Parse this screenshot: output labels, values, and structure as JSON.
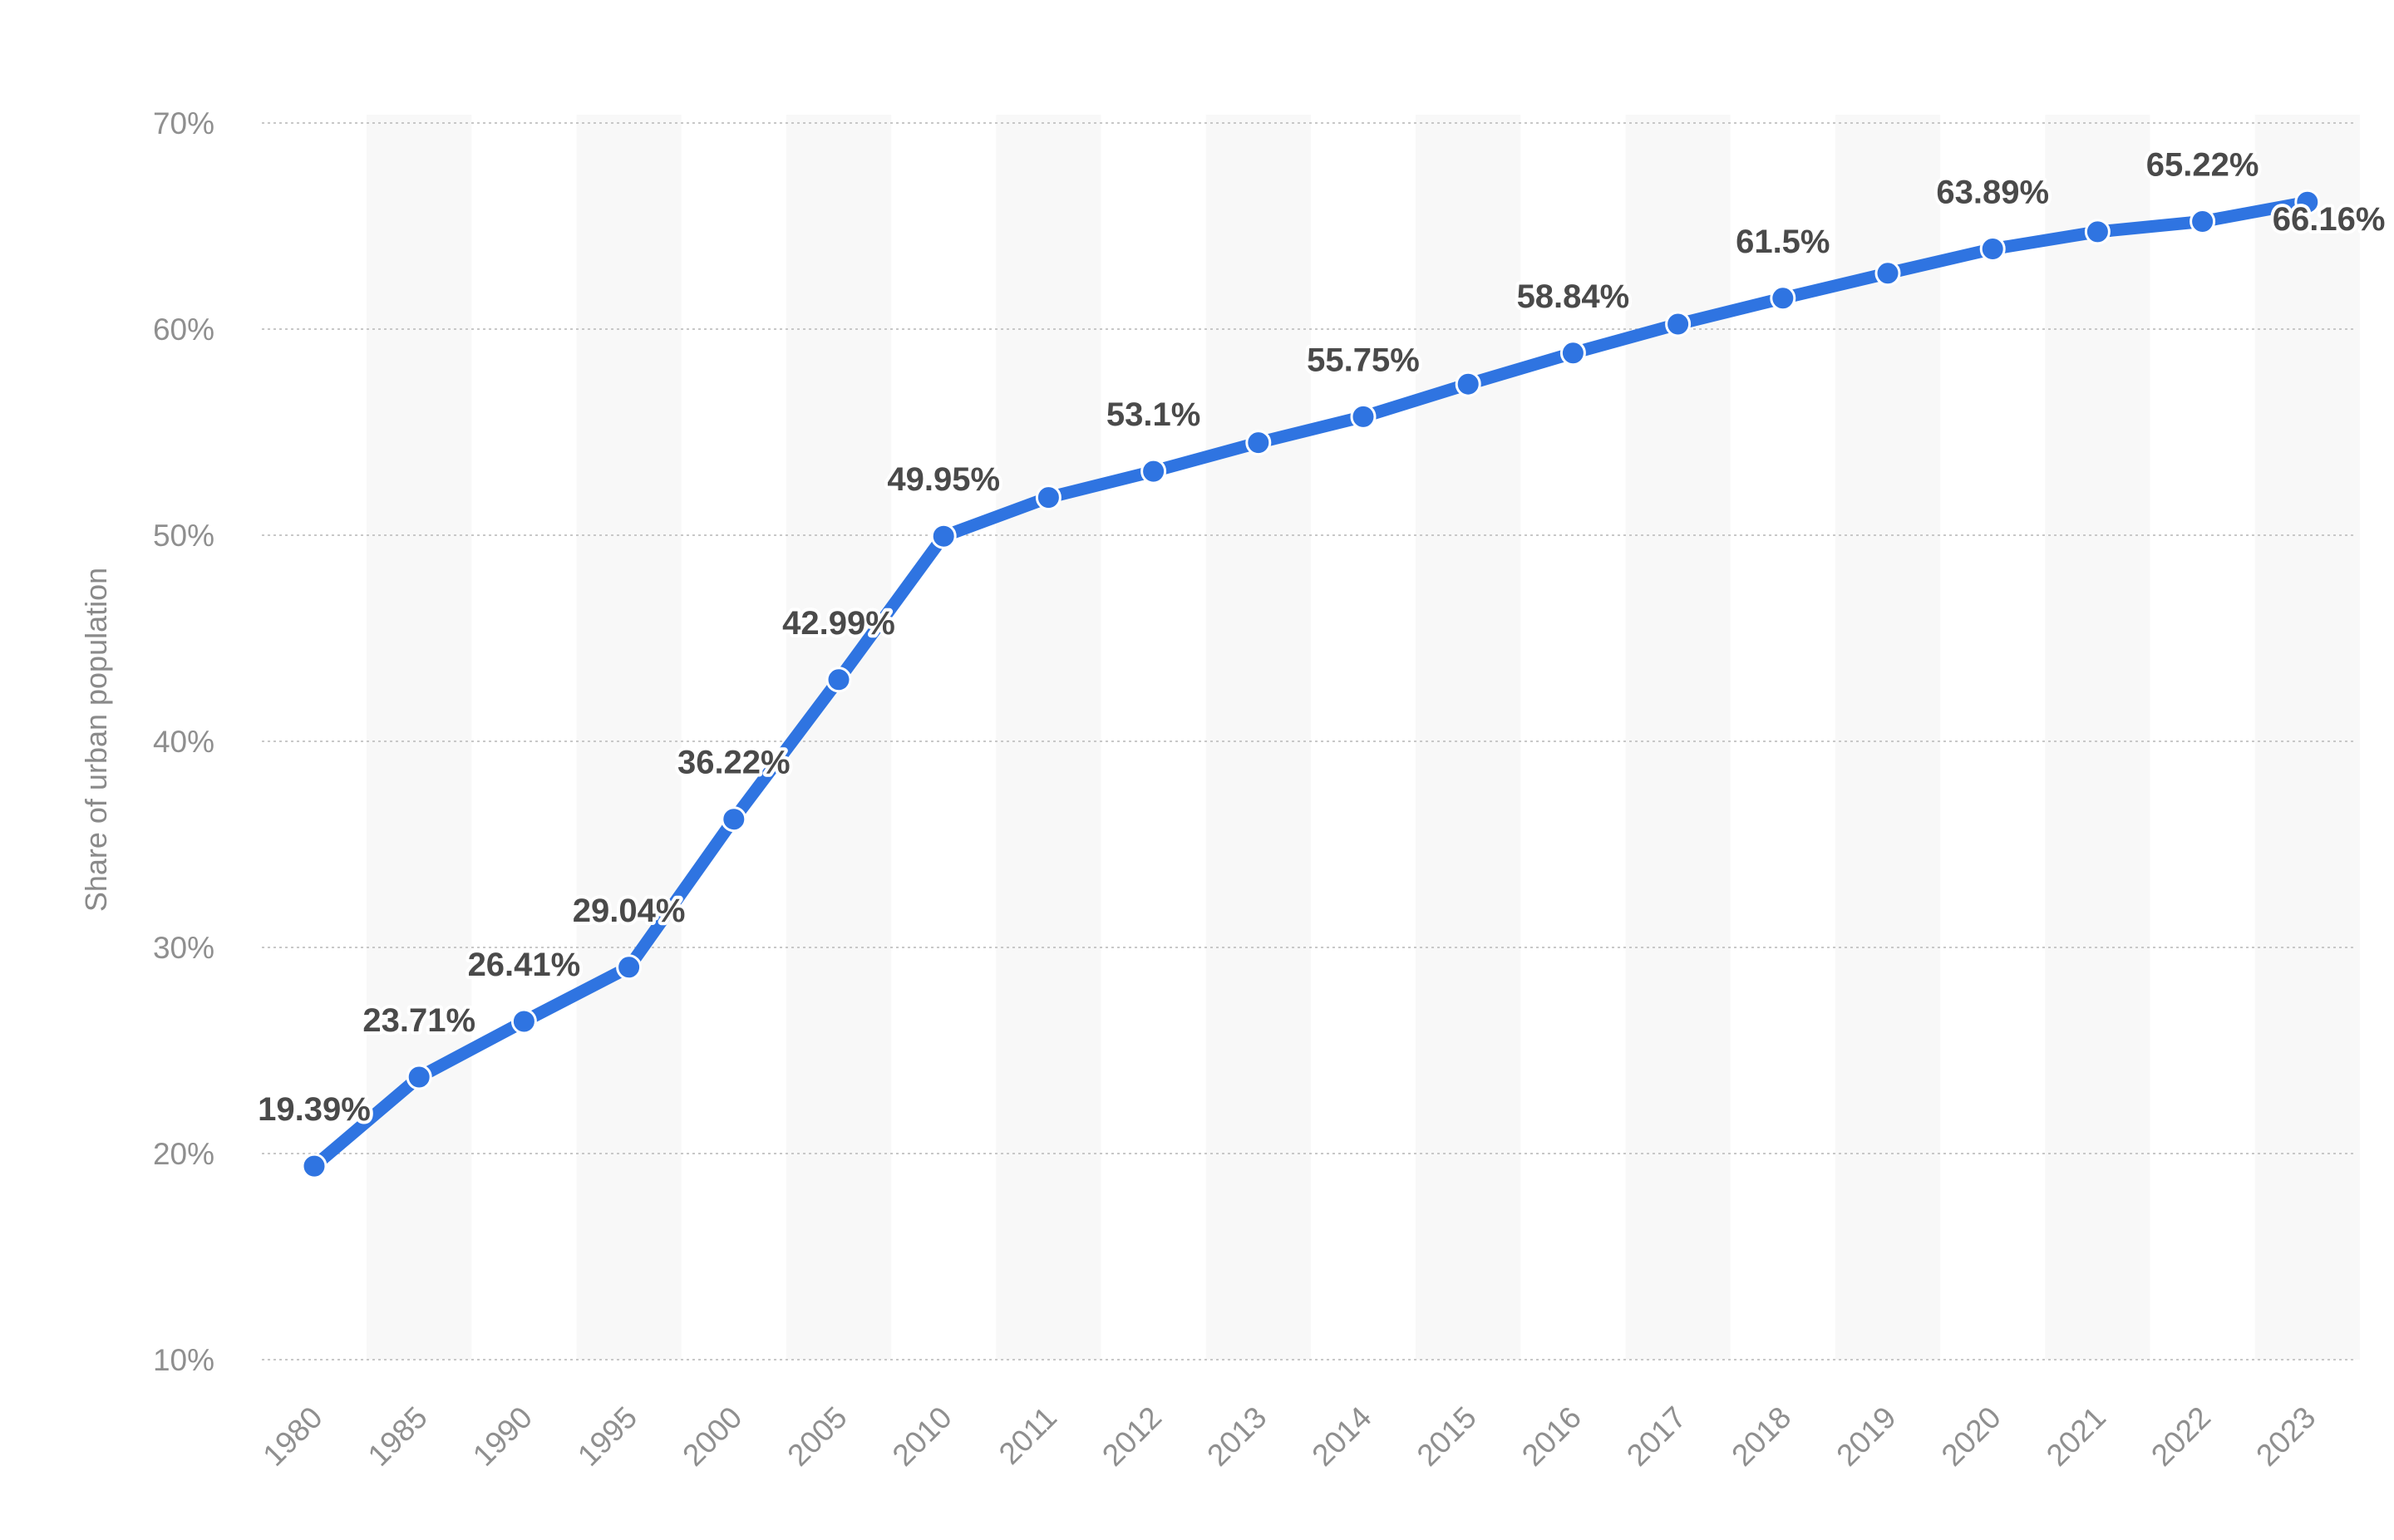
{
  "chart_data": {
    "type": "line",
    "title": "",
    "xlabel": "",
    "ylabel": "Share of urban population",
    "ylim": [
      10,
      70
    ],
    "y_ticks": [
      10,
      20,
      30,
      40,
      50,
      60,
      70
    ],
    "y_tick_labels": [
      "10%",
      "20%",
      "30%",
      "40%",
      "50%",
      "60%",
      "70%"
    ],
    "grid": true,
    "alternate_column_shading": true,
    "series_color": "#2f74e1",
    "categories": [
      "1980",
      "1985",
      "1990",
      "1995",
      "2000",
      "2005",
      "2010",
      "2011",
      "2012",
      "2013",
      "2014",
      "2015",
      "2016",
      "2017",
      "2018",
      "2019",
      "2020",
      "2021",
      "2022",
      "2023"
    ],
    "series": [
      {
        "name": "Share of urban population",
        "values": [
          19.39,
          23.71,
          26.41,
          29.04,
          36.22,
          42.99,
          49.95,
          51.83,
          53.1,
          54.49,
          55.75,
          57.33,
          58.84,
          60.24,
          61.5,
          62.71,
          63.89,
          64.72,
          65.22,
          66.16
        ]
      }
    ],
    "data_labels": [
      "19.39%",
      "23.71%",
      "26.41%",
      "29.04%",
      "36.22%",
      "42.99%",
      "49.95%",
      "",
      "53.1%",
      "",
      "55.75%",
      "",
      "58.84%",
      "",
      "61.5%",
      "",
      "63.89%",
      "",
      "65.22%",
      "66.16%"
    ]
  }
}
